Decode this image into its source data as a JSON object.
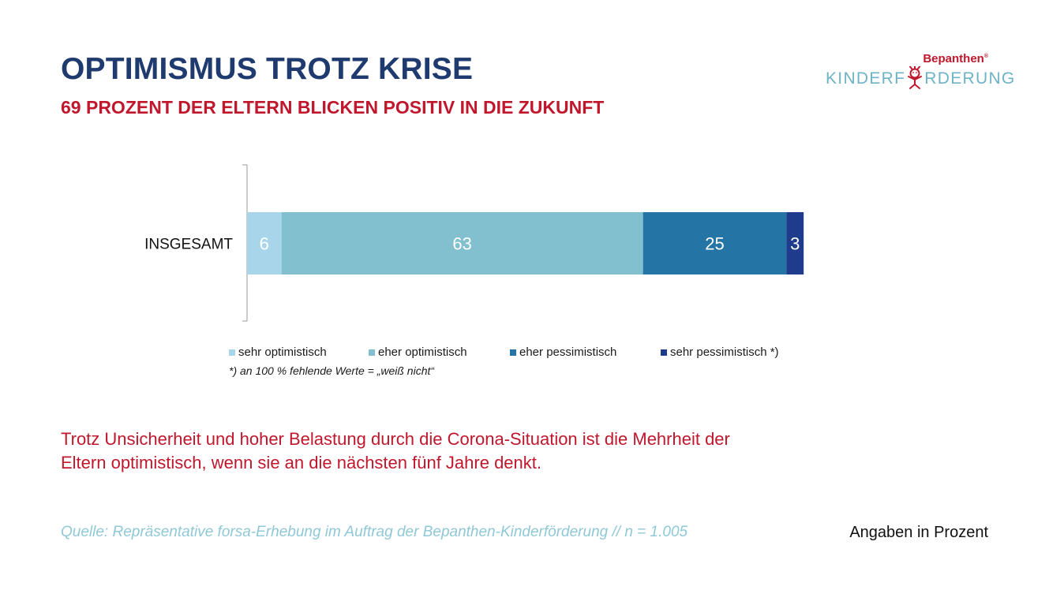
{
  "title": "OPTIMISMUS TROTZ KRISE",
  "subtitle": "69 PROZENT DER ELTERN BLICKEN POSITIV IN DIE ZUKUNFT",
  "logo": {
    "brand": "Bepanthen",
    "brand_mark": "®",
    "program_pre": "KINDERF",
    "program_post": "RDERUNG",
    "mascot_icon": "child-mascot-icon"
  },
  "chart_data": {
    "type": "bar",
    "orientation": "horizontal",
    "stacked": true,
    "categories": [
      "INSGESAMT"
    ],
    "series": [
      {
        "name": "sehr optimistisch",
        "values": [
          6
        ],
        "color": "#a9d5ea"
      },
      {
        "name": "eher optimistisch",
        "values": [
          63
        ],
        "color": "#82bfcf"
      },
      {
        "name": "eher pessimistisch",
        "values": [
          25
        ],
        "color": "#2474a6"
      },
      {
        "name": "sehr pessimistisch *)",
        "values": [
          3
        ],
        "color": "#1f3c8c"
      }
    ],
    "xlim": [
      0,
      100
    ],
    "grid": false,
    "legend_position": "bottom",
    "data_labels": true
  },
  "footnote": "*) an 100 % fehlende Werte = „weiß nicht“",
  "conclusion": [
    "Trotz Unsicherheit und hoher Belastung durch die Corona-Situation ist die Mehrheit der",
    "Eltern optimistisch, wenn sie an die nächsten fünf Jahre denkt."
  ],
  "source": "Quelle: Repräsentative forsa-Erhebung im Auftrag der Bepanthen-Kinderförderung // n = 1.005",
  "units": "Angaben in Prozent"
}
